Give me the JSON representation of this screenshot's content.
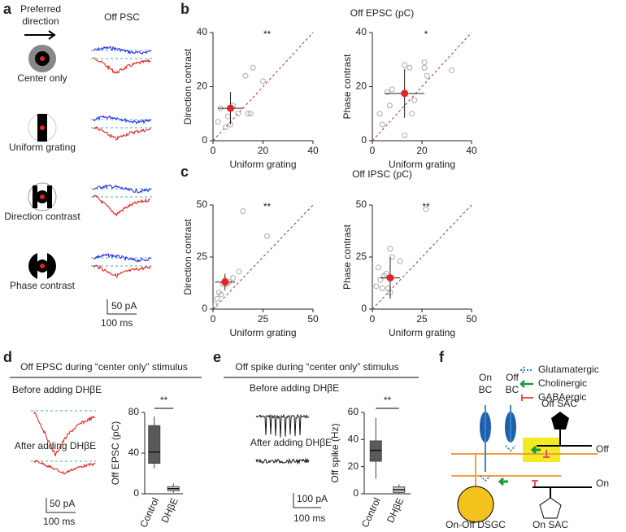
{
  "panel_a": {
    "label": "a",
    "preferred_direction": [
      "Preferred",
      "direction"
    ],
    "trace_title": "Off PSC",
    "stimuli": [
      "Center only",
      "Uniform grating",
      "Direction contrast",
      "Phase contrast"
    ],
    "scale": [
      "50 pA",
      "100 ms"
    ]
  },
  "panel_b": {
    "label": "b",
    "title": "Off EPSC (pC)"
  },
  "panel_c": {
    "label": "c",
    "title": "Off IPSC (pC)"
  },
  "panel_d": {
    "label": "d",
    "title": "Off EPSC during “center only” stimulus",
    "before": "Before adding DHβE",
    "after": "After adding DHβE",
    "scale": [
      "50 pA",
      "100 ms"
    ]
  },
  "panel_e": {
    "label": "e",
    "title": "Off spike during “center only” stimulus",
    "before": "Before adding DHβE",
    "after": "After adding DHβE",
    "scale": [
      "100 pA",
      "100 ms"
    ]
  },
  "panel_f": {
    "label": "f",
    "legend": [
      "Glutamatergic",
      "Cholinergic",
      "GABAergic"
    ],
    "on_bc": [
      "On",
      "BC"
    ],
    "off_bc": [
      "Off",
      "BC"
    ],
    "off_sac": "Off SAC",
    "off_layer": "Off",
    "on_layer": "On",
    "dsgc": "On-Off DSGC",
    "on_sac": "On SAC"
  },
  "chart_data": [
    {
      "type": "scatter",
      "xlabel": "Uniform grating",
      "ylabel": "Direction contrast",
      "significance": "**",
      "x": [
        2,
        3,
        5,
        6,
        7,
        8,
        10,
        13,
        14,
        15,
        16,
        20
      ],
      "y": [
        7,
        12,
        5,
        9,
        6,
        13,
        10,
        24,
        10,
        10,
        27,
        22
      ],
      "mean": {
        "x": 7,
        "y": 12,
        "x_err": 5,
        "y_err": 6
      },
      "xlim": [
        0,
        40
      ],
      "ylim": [
        0,
        40
      ],
      "xticks": [
        0,
        20,
        40
      ],
      "yticks": [
        0,
        20,
        40
      ],
      "color": "#aaaaaa",
      "mean_color": "#e8201f"
    },
    {
      "type": "scatter",
      "xlabel": "Uniform grating",
      "ylabel": "Phase contrast",
      "significance": "*",
      "x": [
        3,
        4,
        6,
        7,
        8,
        13,
        13,
        15,
        16,
        17,
        21,
        21,
        22,
        32
      ],
      "y": [
        10,
        6,
        18,
        13,
        19,
        2,
        28,
        27,
        10,
        15,
        29,
        27,
        24,
        26
      ],
      "mean": {
        "x": 13,
        "y": 17.5,
        "x_err": 8,
        "y_err": 9
      },
      "xlim": [
        0,
        40
      ],
      "ylim": [
        0,
        40
      ],
      "xticks": [
        0,
        20,
        40
      ],
      "yticks": [
        0,
        20,
        40
      ],
      "color": "#aaaaaa",
      "mean_color": "#e8201f"
    },
    {
      "type": "scatter",
      "xlabel": "Uniform grating",
      "ylabel": "Direction contrast",
      "significance": "**",
      "x": [
        1,
        2,
        3,
        4,
        5,
        6,
        7,
        8,
        10,
        13,
        15,
        27
      ],
      "y": [
        2,
        5,
        8,
        7,
        12,
        14,
        12,
        13,
        15,
        18,
        47,
        35
      ],
      "mean": {
        "x": 6,
        "y": 13,
        "x_err": 5,
        "y_err": 4
      },
      "xlim": [
        0,
        50
      ],
      "ylim": [
        0,
        50
      ],
      "xticks": [
        0,
        25,
        50
      ],
      "yticks": [
        0,
        25,
        50
      ],
      "color": "#aaaaaa",
      "mean_color": "#e8201f"
    },
    {
      "type": "scatter",
      "xlabel": "Uniform grating",
      "ylabel": "Phase contrast",
      "significance": "**",
      "x": [
        2,
        3,
        4,
        5,
        6,
        7,
        8,
        9,
        9,
        10,
        14,
        27
      ],
      "y": [
        11,
        20,
        14,
        10,
        16,
        17,
        10,
        8,
        29,
        25,
        23,
        48
      ],
      "mean": {
        "x": 9,
        "y": 15,
        "x_err": 5,
        "y_err": 10
      },
      "xlim": [
        0,
        50
      ],
      "ylim": [
        0,
        50
      ],
      "xticks": [
        0,
        25,
        50
      ],
      "yticks": [
        0,
        25,
        50
      ],
      "color": "#aaaaaa",
      "mean_color": "#e8201f"
    },
    {
      "type": "box",
      "ylabel": "Off EPSC (pC)",
      "significance": "**",
      "categories": [
        "Control",
        "DHβE"
      ],
      "boxes": [
        {
          "min": 25,
          "q1": 30,
          "median": 41,
          "q3": 67,
          "max": 76
        },
        {
          "min": 1,
          "q1": 3,
          "median": 5,
          "q3": 7,
          "max": 10
        }
      ],
      "colors": [
        "#5a5a5a",
        "#d0d0d0"
      ],
      "ylim": [
        0,
        80
      ],
      "yticks": [
        0,
        40,
        80
      ]
    },
    {
      "type": "box",
      "ylabel": "Off spike (Hz)",
      "significance": "**",
      "categories": [
        "Control",
        "DHβE"
      ],
      "boxes": [
        {
          "min": 11,
          "q1": 24,
          "median": 32,
          "q3": 39,
          "max": 56
        },
        {
          "min": 0,
          "q1": 1,
          "median": 3,
          "q3": 5,
          "max": 7
        }
      ],
      "colors": [
        "#5a5a5a",
        "#d0d0d0"
      ],
      "ylim": [
        0,
        60
      ],
      "yticks": [
        0,
        20,
        40,
        60
      ]
    }
  ]
}
